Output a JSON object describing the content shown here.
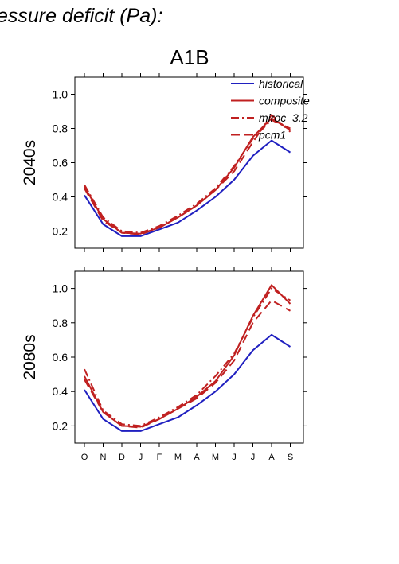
{
  "figure": {
    "heading": "essure deficit (Pa):",
    "scenario": "A1B"
  },
  "chart_data": [
    {
      "type": "line",
      "panel_label": "2040s",
      "categories": [
        "O",
        "N",
        "D",
        "J",
        "F",
        "M",
        "A",
        "M",
        "J",
        "J",
        "A",
        "S"
      ],
      "ylim": [
        0.1,
        1.1
      ],
      "yticks": [
        0.2,
        0.4,
        0.6,
        0.8,
        1.0
      ],
      "ytick_labels": [
        "0.2",
        "0.4",
        "0.6",
        "0.8",
        "1.0"
      ],
      "legend_placement": "top-right",
      "series": [
        {
          "name": "historical",
          "color": "#2020c0",
          "dash": "solid",
          "values": [
            0.41,
            0.24,
            0.17,
            0.17,
            0.21,
            0.25,
            0.32,
            0.4,
            0.5,
            0.64,
            0.73,
            0.66
          ]
        },
        {
          "name": "composite",
          "color": "#c02020",
          "dash": "solid",
          "values": [
            0.46,
            0.27,
            0.19,
            0.185,
            0.22,
            0.28,
            0.35,
            0.44,
            0.57,
            0.75,
            0.86,
            0.79
          ]
        },
        {
          "name": "miroc_3.2",
          "color": "#c02020",
          "dash": "dashdot",
          "values": [
            0.47,
            0.28,
            0.2,
            0.19,
            0.23,
            0.29,
            0.36,
            0.45,
            0.58,
            0.74,
            0.85,
            0.8
          ]
        },
        {
          "name": "pcm1",
          "color": "#c02020",
          "dash": "dash",
          "values": [
            0.45,
            0.26,
            0.19,
            0.18,
            0.22,
            0.28,
            0.35,
            0.44,
            0.55,
            0.72,
            0.88,
            0.78
          ]
        }
      ]
    },
    {
      "type": "line",
      "panel_label": "2080s",
      "categories": [
        "O",
        "N",
        "D",
        "J",
        "F",
        "M",
        "A",
        "M",
        "J",
        "J",
        "A",
        "S"
      ],
      "ylim": [
        0.1,
        1.1
      ],
      "yticks": [
        0.2,
        0.4,
        0.6,
        0.8,
        1.0
      ],
      "ytick_labels": [
        "0.2",
        "0.4",
        "0.6",
        "0.8",
        "1.0"
      ],
      "series": [
        {
          "name": "historical",
          "color": "#2020c0",
          "dash": "solid",
          "values": [
            0.41,
            0.24,
            0.17,
            0.17,
            0.21,
            0.25,
            0.32,
            0.4,
            0.5,
            0.64,
            0.73,
            0.66
          ]
        },
        {
          "name": "composite",
          "color": "#c02020",
          "dash": "solid",
          "values": [
            0.49,
            0.28,
            0.2,
            0.195,
            0.24,
            0.3,
            0.37,
            0.46,
            0.61,
            0.84,
            1.02,
            0.91
          ]
        },
        {
          "name": "miroc_3.2",
          "color": "#c02020",
          "dash": "dashdot",
          "values": [
            0.53,
            0.29,
            0.21,
            0.2,
            0.25,
            0.31,
            0.38,
            0.49,
            0.62,
            0.83,
            1.0,
            0.93
          ]
        },
        {
          "name": "pcm1",
          "color": "#c02020",
          "dash": "dash",
          "values": [
            0.47,
            0.28,
            0.2,
            0.19,
            0.24,
            0.3,
            0.36,
            0.45,
            0.58,
            0.8,
            0.93,
            0.87
          ]
        }
      ]
    }
  ]
}
